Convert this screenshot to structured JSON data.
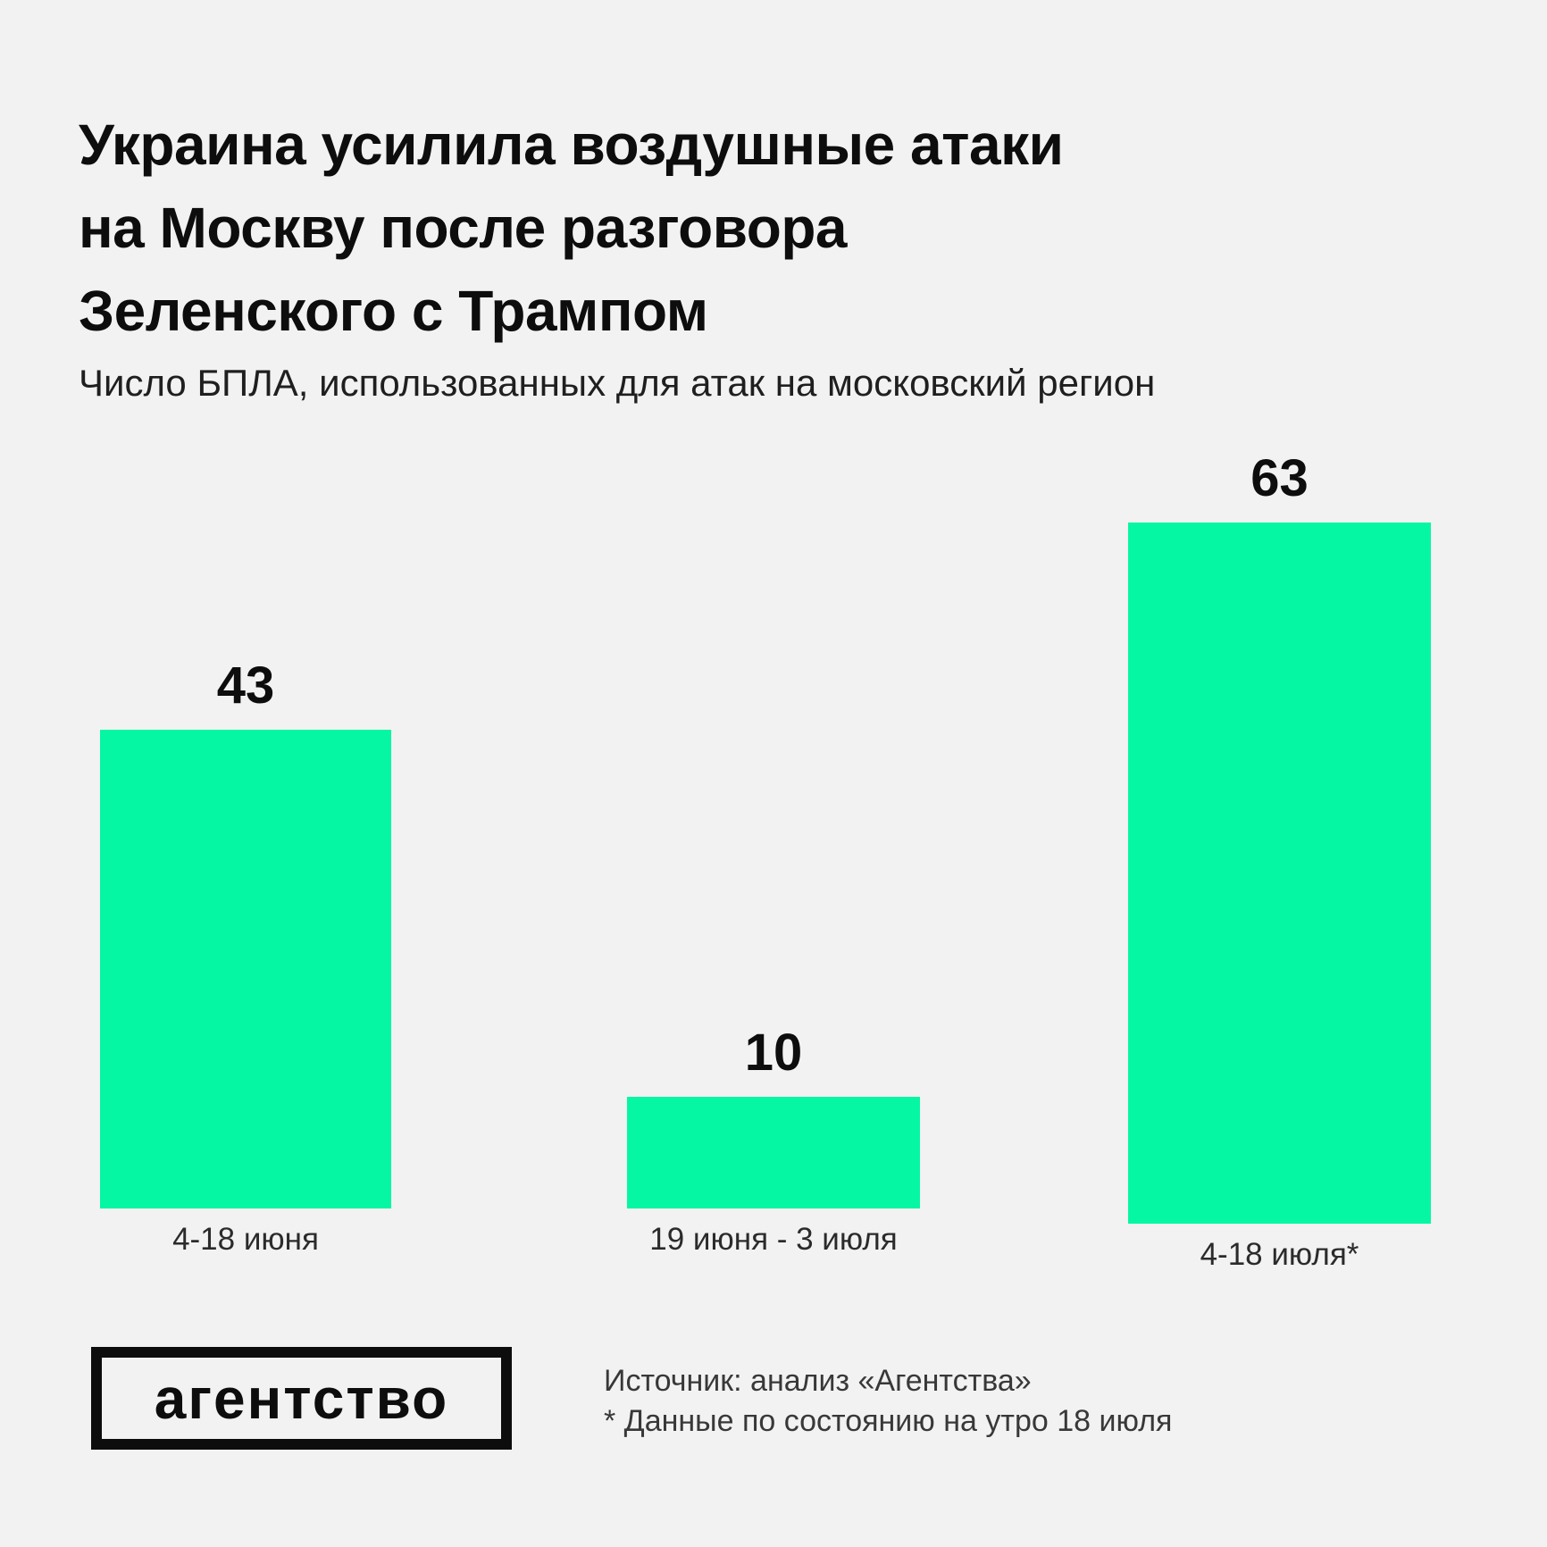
{
  "header": {
    "title_lines": [
      "Украина усилила воздушные атаки",
      "на Москву после разговора",
      "Зеленского с Трампом"
    ],
    "subtitle": "Число БПЛА, использованных для атак на московский регион"
  },
  "chart_data": {
    "type": "bar",
    "title": "Украина усилила воздушные атаки на Москву после разговора Зеленского с Трампом",
    "subtitle": "Число БПЛА, использованных для атак на московский регион",
    "categories": [
      "4-18 июня",
      "19 июня - 3 июля",
      "4-18 июля*"
    ],
    "values": [
      43,
      10,
      63
    ],
    "value_labels": [
      "43",
      "10",
      "63"
    ],
    "orientation": "vertical",
    "bar_color": "#06f7a3",
    "background_color": "#f2f2f2",
    "axes_shown": false,
    "gridlines": false,
    "legend": "none",
    "ylim": [
      0,
      63
    ]
  },
  "footer": {
    "logo_text": "агентство",
    "source_line": "Источник: анализ «Агентства»",
    "footnote_line": "* Данные по состоянию на утро 18 июля"
  }
}
